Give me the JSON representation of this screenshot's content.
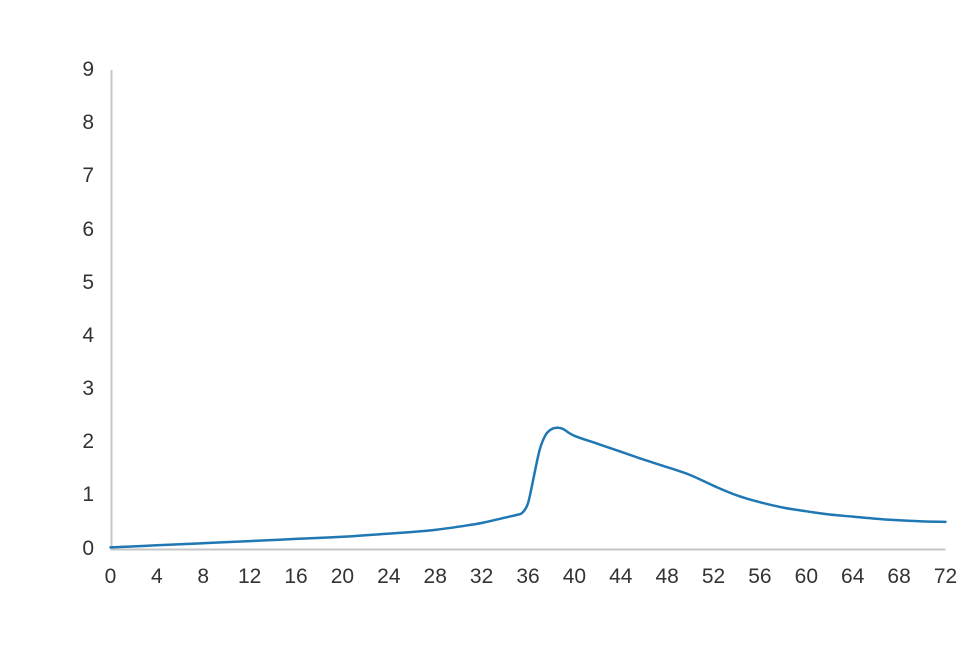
{
  "chart_data": {
    "type": "line",
    "title": "",
    "xlabel": "",
    "ylabel": "",
    "xlim": [
      0,
      72
    ],
    "ylim": [
      0,
      9
    ],
    "x_ticks": [
      0,
      4,
      8,
      12,
      16,
      20,
      24,
      28,
      32,
      36,
      40,
      44,
      48,
      52,
      56,
      60,
      64,
      68,
      72
    ],
    "y_ticks": [
      0,
      1,
      2,
      3,
      4,
      5,
      6,
      7,
      8,
      9
    ],
    "grid": false,
    "legend": "none",
    "colors": {
      "line": "#1f77b4",
      "axis": "#c6c6c6",
      "tick_label": "#333333",
      "background": "#ffffff"
    },
    "series": [
      {
        "name": "series-1",
        "points": [
          [
            0,
            0.02
          ],
          [
            2,
            0.04
          ],
          [
            4,
            0.06
          ],
          [
            6,
            0.08
          ],
          [
            8,
            0.1
          ],
          [
            10,
            0.12
          ],
          [
            12,
            0.14
          ],
          [
            14,
            0.16
          ],
          [
            16,
            0.18
          ],
          [
            18,
            0.2
          ],
          [
            20,
            0.22
          ],
          [
            22,
            0.25
          ],
          [
            24,
            0.28
          ],
          [
            26,
            0.31
          ],
          [
            28,
            0.35
          ],
          [
            30,
            0.41
          ],
          [
            32,
            0.48
          ],
          [
            34,
            0.58
          ],
          [
            35,
            0.63
          ],
          [
            35.5,
            0.67
          ],
          [
            36,
            0.85
          ],
          [
            36.5,
            1.35
          ],
          [
            37,
            1.85
          ],
          [
            37.5,
            2.13
          ],
          [
            38,
            2.24
          ],
          [
            38.5,
            2.27
          ],
          [
            39,
            2.25
          ],
          [
            40,
            2.12
          ],
          [
            42,
            1.97
          ],
          [
            44,
            1.82
          ],
          [
            46,
            1.67
          ],
          [
            48,
            1.53
          ],
          [
            50,
            1.38
          ],
          [
            52,
            1.18
          ],
          [
            54,
            1.0
          ],
          [
            56,
            0.87
          ],
          [
            58,
            0.77
          ],
          [
            60,
            0.7
          ],
          [
            62,
            0.64
          ],
          [
            64,
            0.6
          ],
          [
            66,
            0.56
          ],
          [
            68,
            0.53
          ],
          [
            70,
            0.51
          ],
          [
            72,
            0.5
          ]
        ]
      }
    ]
  }
}
